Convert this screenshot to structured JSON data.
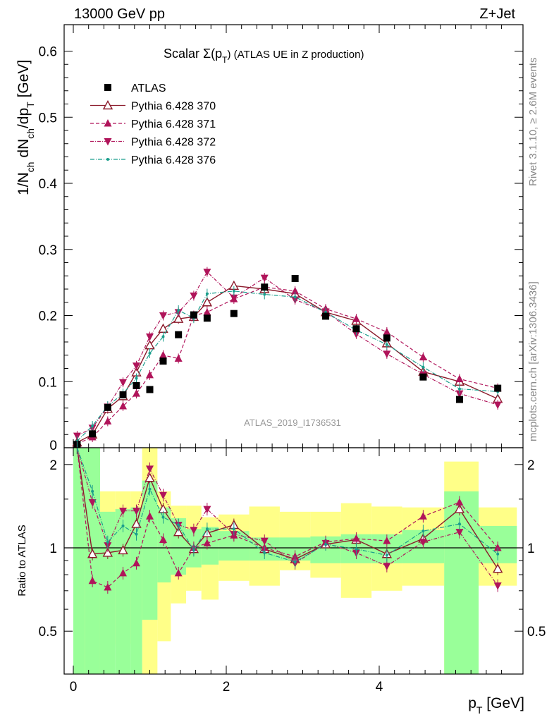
{
  "header": {
    "left": "13000 GeV pp",
    "right": "Z+Jet"
  },
  "side_text": {
    "rivet": "Rivet 3.1.10, ≥ 2.6M events",
    "source": "mcplots.cern.ch [arXiv:1306.3436]"
  },
  "colors": {
    "data": "#000000",
    "p370": "#8b1a2b",
    "p371": "#b0145a",
    "p372": "#b0145a",
    "p376": "#1a9e8c",
    "band_inner": "#99ff99",
    "band_outer": "#ffff88"
  },
  "chart_data": [
    {
      "type": "scatter",
      "title": "Scalar Σ(p_T) (ATLAS UE in Z production)",
      "title_main": "Scalar Σ(p",
      "title_sub": "T",
      "title_tail": ") (ATLAS UE in Z production)",
      "watermark": "ATLAS_2019_I1736531",
      "ylabel": "1/N_ch dN_ch/dp_T [GeV]",
      "xlim": [
        -0.2,
        5.85
      ],
      "ylim": [
        0,
        0.64
      ],
      "yticks": [
        0.1,
        0.2,
        0.3,
        0.4,
        0.5,
        0.6
      ],
      "ytick_labels": [
        "0.1",
        "0.2",
        "0.3",
        "0.4",
        "0.5",
        "0.6"
      ],
      "bottom_tick_label": "0",
      "legend": [
        "ATLAS",
        "Pythia 6.428 370",
        "Pythia 6.428 371",
        "Pythia 6.428 372",
        "Pythia 6.428 376"
      ],
      "legend_position": "top-left",
      "x": [
        0.05,
        0.25,
        0.45,
        0.65,
        0.825,
        1.0,
        1.175,
        1.375,
        1.575,
        1.75,
        2.1,
        2.5,
        2.9,
        3.3,
        3.7,
        4.1,
        4.575,
        5.05,
        5.55
      ],
      "series": [
        {
          "name": "ATLAS",
          "key": "data",
          "marker": "square",
          "dash": "",
          "values": [
            0.005,
            0.021,
            0.061,
            0.08,
            0.094,
            0.088,
            0.131,
            0.171,
            0.201,
            0.196,
            0.203,
            0.243,
            0.256,
            0.199,
            0.18,
            0.166,
            0.107,
            0.073,
            0.09
          ]
        },
        {
          "name": "Pythia 6.428 370",
          "key": "p370",
          "marker": "tri-open",
          "dash": "",
          "values": [
            0.008,
            0.02,
            0.059,
            0.078,
            0.114,
            0.155,
            0.18,
            0.195,
            0.198,
            0.22,
            0.245,
            0.24,
            0.233,
            0.205,
            0.192,
            0.158,
            0.115,
            0.1,
            0.074
          ]
        },
        {
          "name": "Pythia 6.428 371",
          "key": "p371",
          "marker": "tri-up",
          "dash": "5,3",
          "values": [
            0.006,
            0.016,
            0.04,
            0.063,
            0.082,
            0.11,
            0.14,
            0.135,
            0.2,
            0.205,
            0.225,
            0.243,
            0.237,
            0.21,
            0.195,
            0.175,
            0.137,
            0.104,
            0.09
          ]
        },
        {
          "name": "Pythia 6.428 372",
          "key": "p372",
          "marker": "tri-down",
          "dash": "5,2,1,2",
          "values": [
            0.018,
            0.03,
            0.062,
            0.099,
            0.124,
            0.168,
            0.2,
            0.205,
            0.23,
            0.266,
            0.227,
            0.257,
            0.224,
            0.206,
            0.172,
            0.142,
            0.111,
            0.082,
            0.065
          ]
        },
        {
          "name": "Pythia 6.428 376",
          "key": "p376",
          "marker": "dot",
          "dash": "6,2,1,2",
          "values": [
            0.01,
            0.033,
            0.063,
            0.082,
            0.105,
            0.143,
            0.168,
            0.208,
            0.196,
            0.233,
            0.237,
            0.232,
            0.228,
            0.205,
            0.178,
            0.156,
            0.122,
            0.089,
            0.085
          ]
        }
      ]
    },
    {
      "type": "line",
      "ylabel": "Ratio to ATLAS",
      "xlabel": "p_T [GeV]",
      "xlabel_main": "p",
      "xlabel_sub": "T",
      "xlabel_tail": " [GeV]",
      "xlim": [
        -0.2,
        5.85
      ],
      "ylim": [
        0.35,
        2.3
      ],
      "log_y": true,
      "yticks": [
        0.5,
        1,
        2
      ],
      "ytick_labels": [
        "0.5",
        "1",
        "2"
      ],
      "xticks": [
        0,
        2,
        4
      ],
      "xtick_labels": [
        "0",
        "2",
        "4"
      ],
      "reference": 1,
      "bins": [
        [
          0.0,
          0.15
        ],
        [
          0.15,
          0.35
        ],
        [
          0.35,
          0.55
        ],
        [
          0.55,
          0.75
        ],
        [
          0.75,
          0.9
        ],
        [
          0.9,
          1.1
        ],
        [
          1.1,
          1.275
        ],
        [
          1.275,
          1.475
        ],
        [
          1.475,
          1.675
        ],
        [
          1.675,
          1.9
        ],
        [
          1.9,
          2.3
        ],
        [
          2.3,
          2.7
        ],
        [
          2.7,
          3.1
        ],
        [
          3.1,
          3.5
        ],
        [
          3.5,
          3.9
        ],
        [
          3.9,
          4.3
        ],
        [
          4.3,
          4.85
        ],
        [
          4.85,
          5.3
        ],
        [
          5.3,
          5.8
        ]
      ],
      "band_inner_low": [
        0.35,
        0.35,
        0.35,
        0.35,
        0.35,
        0.55,
        0.75,
        0.8,
        0.85,
        0.87,
        0.9,
        0.9,
        0.9,
        0.88,
        0.88,
        0.88,
        0.88,
        0.35,
        0.88
      ],
      "band_inner_high": [
        2.3,
        2.3,
        1.35,
        1.38,
        1.4,
        1.75,
        1.4,
        1.28,
        1.17,
        1.19,
        1.15,
        1.09,
        1.09,
        1.1,
        1.12,
        1.12,
        1.16,
        1.6,
        1.2
      ],
      "band_outer_low": [
        0.35,
        0.35,
        0.44,
        0.45,
        0.44,
        0.35,
        0.46,
        0.63,
        0.7,
        0.65,
        0.76,
        0.73,
        0.83,
        0.78,
        0.66,
        0.7,
        0.73,
        0.35,
        0.73
      ],
      "band_outer_high": [
        2.3,
        2.3,
        1.6,
        1.6,
        1.6,
        2.3,
        1.6,
        1.42,
        1.42,
        1.29,
        1.32,
        1.41,
        1.35,
        1.35,
        1.45,
        1.41,
        1.4,
        2.05,
        1.4
      ],
      "series": [
        {
          "name": "Pythia 6.428 370",
          "key": "p370",
          "marker": "tri-open",
          "dash": "",
          "values": [
            2.3,
            0.95,
            0.96,
            0.98,
            1.22,
            1.79,
            1.38,
            1.14,
            0.99,
            1.13,
            1.21,
            0.99,
            0.91,
            1.03,
            1.07,
            0.95,
            1.08,
            1.38,
            0.84
          ]
        },
        {
          "name": "Pythia 6.428 371",
          "key": "p371",
          "marker": "tri-up",
          "dash": "5,3",
          "values": [
            2.3,
            0.76,
            0.72,
            0.81,
            0.88,
            1.3,
            1.07,
            0.81,
            1.0,
            1.04,
            1.11,
            1.0,
            0.93,
            1.05,
            1.08,
            1.06,
            1.3,
            1.46,
            1.0
          ]
        },
        {
          "name": "Pythia 6.428 372",
          "key": "p372",
          "marker": "tri-down",
          "dash": "5,2,1,2",
          "values": [
            2.3,
            1.46,
            1.02,
            1.36,
            1.36,
            1.93,
            1.55,
            1.21,
            1.16,
            1.38,
            1.12,
            1.06,
            0.88,
            1.04,
            0.96,
            0.86,
            1.05,
            1.14,
            0.73
          ]
        },
        {
          "name": "Pythia 6.428 376",
          "key": "p376",
          "marker": "dot",
          "dash": "6,2,1,2",
          "values": [
            2.3,
            1.6,
            1.05,
            1.2,
            1.12,
            1.63,
            1.29,
            1.21,
            0.98,
            1.17,
            1.17,
            0.96,
            0.89,
            1.03,
            0.99,
            0.94,
            1.15,
            1.22,
            0.95
          ]
        }
      ]
    }
  ]
}
